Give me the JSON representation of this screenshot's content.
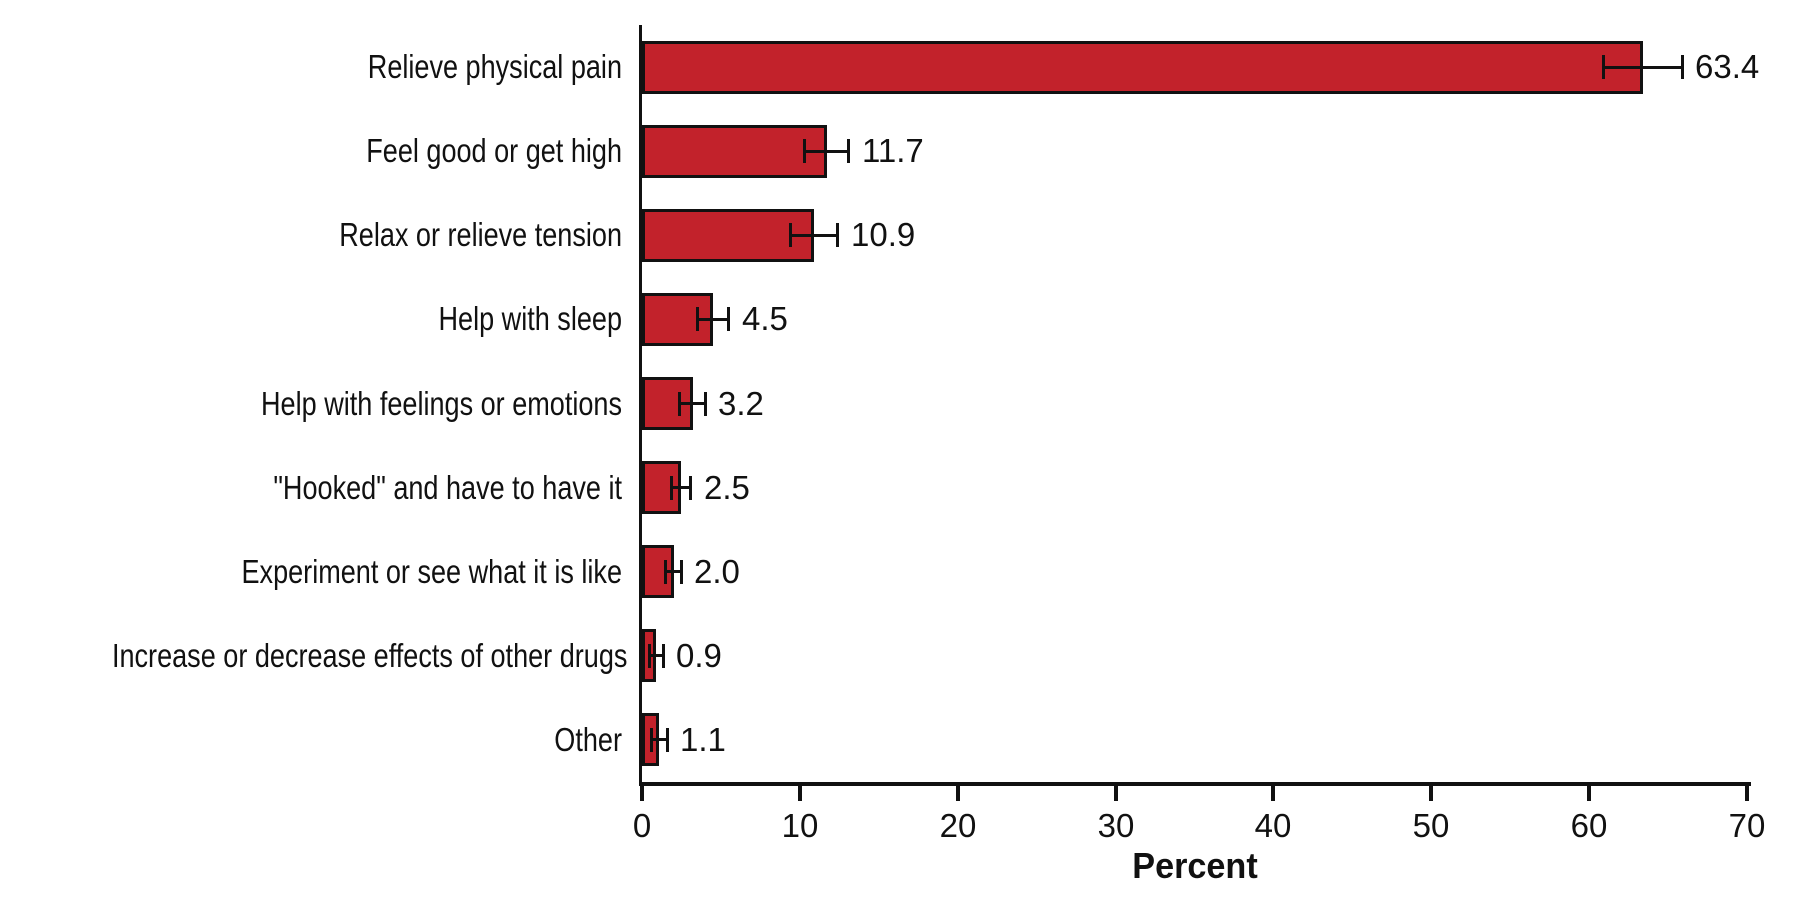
{
  "chart_data": {
    "type": "bar",
    "orientation": "horizontal",
    "title": "",
    "xlabel": "Percent",
    "ylabel": "",
    "xlim": [
      0,
      70
    ],
    "xticks": [
      0,
      10,
      20,
      30,
      40,
      50,
      60,
      70
    ],
    "grid": false,
    "legend": false,
    "categories": [
      "Relieve physical pain",
      "Feel good or get high",
      "Relax or relieve tension",
      "Help with sleep",
      "Help with feelings or emotions",
      "\"Hooked\" and have to have it",
      "Experiment or see what it is like",
      "Increase or decrease effects of other drugs",
      "Other"
    ],
    "values": [
      63.4,
      11.7,
      10.9,
      4.5,
      3.2,
      2.5,
      2.0,
      0.9,
      1.1
    ],
    "value_labels": [
      "63.4",
      "11.7",
      "10.9",
      "4.5",
      "3.2",
      "2.5",
      "2.0",
      "0.9",
      "1.1"
    ],
    "error_bars_plus_minus": [
      2.5,
      1.4,
      1.5,
      1.0,
      0.8,
      0.6,
      0.5,
      0.45,
      0.5
    ],
    "bar_color": "#C2222B",
    "bar_border_color": "#111111",
    "axis_color": "#111111",
    "text_color": "#111111",
    "background_color": "#FFFFFF"
  }
}
